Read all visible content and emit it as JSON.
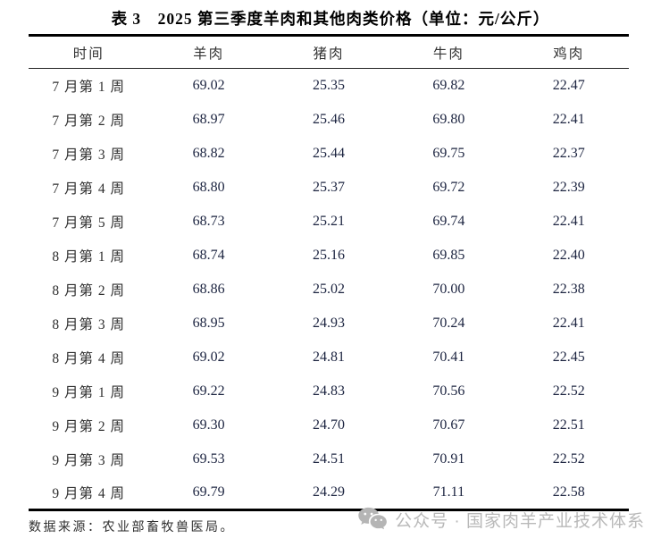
{
  "title": "表 3　2025 第三季度羊肉和其他肉类价格（单位：元/公斤）",
  "table": {
    "columns": [
      "时间",
      "羊肉",
      "猪肉",
      "牛肉",
      "鸡肉"
    ],
    "rows": [
      {
        "label": "7 月第 1 周",
        "values": [
          "69.02",
          "25.35",
          "69.82",
          "22.47"
        ]
      },
      {
        "label": "7 月第 2 周",
        "values": [
          "68.97",
          "25.46",
          "69.80",
          "22.41"
        ]
      },
      {
        "label": "7 月第 3 周",
        "values": [
          "68.82",
          "25.44",
          "69.75",
          "22.37"
        ]
      },
      {
        "label": "7 月第 4 周",
        "values": [
          "68.80",
          "25.37",
          "69.72",
          "22.39"
        ]
      },
      {
        "label": "7 月第 5 周",
        "values": [
          "68.73",
          "25.21",
          "69.74",
          "22.41"
        ]
      },
      {
        "label": "8 月第 1 周",
        "values": [
          "68.74",
          "25.16",
          "69.85",
          "22.40"
        ]
      },
      {
        "label": "8 月第 2 周",
        "values": [
          "68.86",
          "25.02",
          "70.00",
          "22.38"
        ]
      },
      {
        "label": "8 月第 3 周",
        "values": [
          "68.95",
          "24.93",
          "70.24",
          "22.41"
        ]
      },
      {
        "label": "8 月第 4 周",
        "values": [
          "69.02",
          "24.81",
          "70.41",
          "22.45"
        ]
      },
      {
        "label": "9 月第 1 周",
        "values": [
          "69.22",
          "24.83",
          "70.56",
          "22.52"
        ]
      },
      {
        "label": "9 月第 2 周",
        "values": [
          "69.30",
          "24.70",
          "70.67",
          "22.51"
        ]
      },
      {
        "label": "9 月第 3 周",
        "values": [
          "69.53",
          "24.51",
          "70.91",
          "22.52"
        ]
      },
      {
        "label": "9 月第 4 周",
        "values": [
          "69.79",
          "24.29",
          "71.11",
          "22.58"
        ]
      }
    ]
  },
  "footer": {
    "source": "数据来源：农业部畜牧兽医局。"
  },
  "watermark": {
    "icon": "wechat-icon",
    "text": "公众号 · 国家肉羊产业技术体系",
    "color": "#b9b9b9"
  },
  "colors": {
    "rule": "#000000",
    "number_text": "#1c2440",
    "label_text": "#2f2f2f",
    "watermark": "#b9b9b9"
  }
}
